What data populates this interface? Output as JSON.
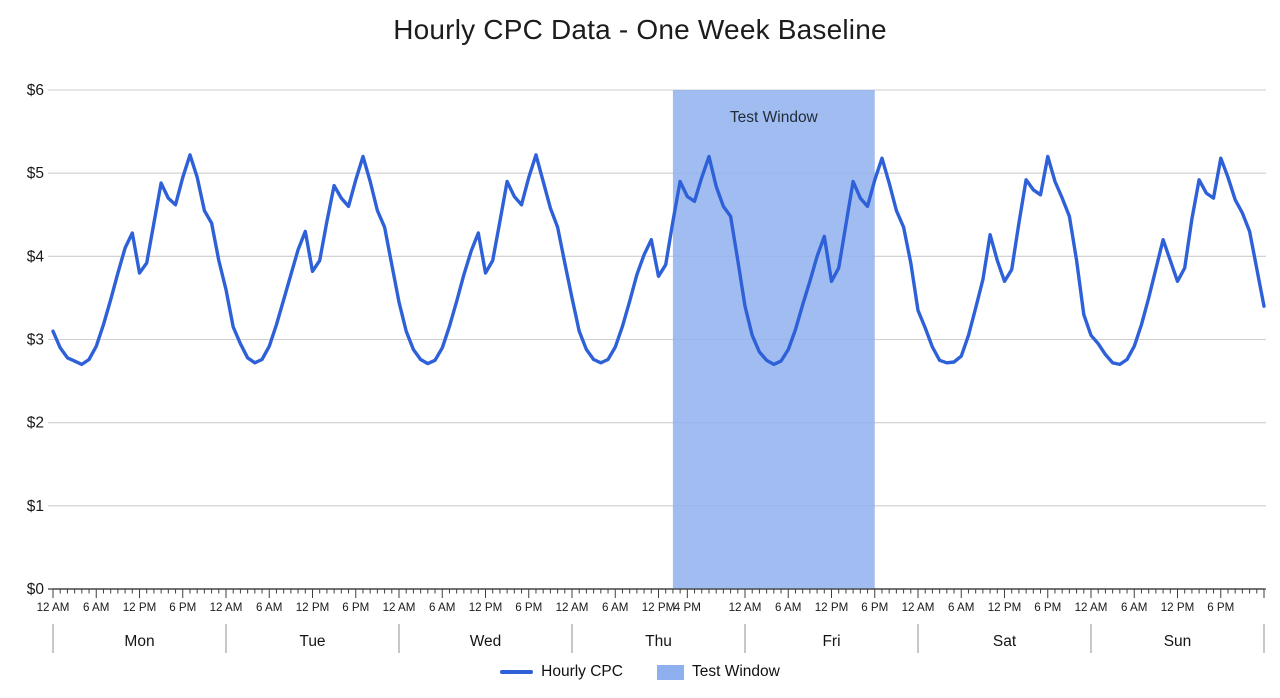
{
  "chart_data": {
    "type": "line",
    "title": "Hourly CPC Data - One Week Baseline",
    "legend_position": "bottom",
    "grid": true,
    "y_axis": {
      "min": 0,
      "max": 6,
      "tick_labels": [
        "$0",
        "$1",
        "$2",
        "$3",
        "$4",
        "$5",
        "$6"
      ]
    },
    "x_axis": {
      "unit": "hour",
      "hours_per_day": 24,
      "total_hours": 168,
      "days": [
        {
          "name": "Mon",
          "tick_labels": [
            [
              "12 AM",
              0
            ],
            [
              "6 AM",
              6
            ],
            [
              "12 PM",
              12
            ],
            [
              "6 PM",
              18
            ]
          ]
        },
        {
          "name": "Tue",
          "tick_labels": [
            [
              "12 AM",
              0
            ],
            [
              "6 AM",
              6
            ],
            [
              "12 PM",
              12
            ],
            [
              "6 PM",
              18
            ]
          ]
        },
        {
          "name": "Wed",
          "tick_labels": [
            [
              "12 AM",
              0
            ],
            [
              "6 AM",
              6
            ],
            [
              "12 PM",
              12
            ],
            [
              "6 PM",
              18
            ]
          ]
        },
        {
          "name": "Thu",
          "tick_labels": [
            [
              "12 AM",
              0
            ],
            [
              "6 AM",
              6
            ],
            [
              "12 PM",
              12
            ],
            [
              "4 PM",
              16
            ]
          ]
        },
        {
          "name": "Fri",
          "tick_labels": [
            [
              "12 AM",
              0
            ],
            [
              "6 AM",
              6
            ],
            [
              "12 PM",
              12
            ],
            [
              "6 PM",
              18
            ]
          ]
        },
        {
          "name": "Sat",
          "tick_labels": [
            [
              "12 AM",
              0
            ],
            [
              "6 AM",
              6
            ],
            [
              "12 PM",
              12
            ],
            [
              "6 PM",
              18
            ]
          ]
        },
        {
          "name": "Sun",
          "tick_labels": [
            [
              "12 AM",
              0
            ],
            [
              "6 AM",
              6
            ],
            [
              "12 PM",
              12
            ],
            [
              "6 PM",
              18
            ]
          ]
        }
      ]
    },
    "series": [
      {
        "name": "Hourly CPC",
        "color": "#2e61d8",
        "start_hour": 0,
        "values": [
          3.1,
          2.9,
          2.78,
          2.74,
          2.7,
          2.76,
          2.92,
          3.18,
          3.48,
          3.8,
          4.1,
          4.28,
          3.8,
          3.92,
          4.4,
          4.88,
          4.7,
          4.62,
          4.95,
          5.22,
          4.95,
          4.55,
          4.4,
          3.95,
          3.6,
          3.15,
          2.95,
          2.78,
          2.72,
          2.76,
          2.92,
          3.18,
          3.48,
          3.78,
          4.08,
          4.3,
          3.82,
          3.95,
          4.42,
          4.85,
          4.7,
          4.6,
          4.92,
          5.2,
          4.9,
          4.55,
          4.35,
          3.9,
          3.45,
          3.1,
          2.88,
          2.76,
          2.71,
          2.75,
          2.9,
          3.16,
          3.46,
          3.78,
          4.06,
          4.28,
          3.8,
          3.95,
          4.42,
          4.9,
          4.72,
          4.62,
          4.95,
          5.22,
          4.9,
          4.58,
          4.35,
          3.92,
          3.5,
          3.1,
          2.88,
          2.76,
          2.72,
          2.76,
          2.91,
          3.16,
          3.46,
          3.78,
          4.02,
          4.2,
          3.76,
          3.9,
          4.42,
          4.9,
          4.72,
          4.66,
          4.95,
          5.2,
          4.84,
          4.6,
          4.48,
          3.95,
          3.4,
          3.05,
          2.85,
          2.75,
          2.7,
          2.74,
          2.88,
          3.12,
          3.42,
          3.7,
          4.0,
          4.24,
          3.7,
          3.86,
          4.38,
          4.9,
          4.7,
          4.6,
          4.92,
          5.18,
          4.88,
          4.55,
          4.35,
          3.92,
          3.35,
          3.14,
          2.91,
          2.75,
          2.72,
          2.73,
          2.8,
          3.05,
          3.38,
          3.72,
          4.26,
          3.95,
          3.7,
          3.84,
          4.4,
          4.92,
          4.8,
          4.74,
          5.2,
          4.9,
          4.7,
          4.48,
          3.95,
          3.3,
          3.05,
          2.95,
          2.82,
          2.72,
          2.7,
          2.76,
          2.92,
          3.18,
          3.5,
          3.85,
          4.2,
          3.95,
          3.7,
          3.86,
          4.45,
          4.92,
          4.76,
          4.7,
          5.18,
          4.95,
          4.68,
          4.52,
          4.3,
          3.85,
          3.4
        ]
      }
    ],
    "annotations": [
      {
        "type": "region",
        "label": "Test Window",
        "start_hour": 86,
        "end_hour": 114,
        "start": "Thu 2 PM",
        "end": "Fri 6 PM",
        "fill": "#8fb0ef"
      }
    ]
  },
  "legend": {
    "items": [
      {
        "label": "Hourly CPC",
        "swatch": "line"
      },
      {
        "label": "Test Window",
        "swatch": "box"
      }
    ]
  },
  "colors": {
    "line": "#2e61d8",
    "window_fill": "#8fb0ef",
    "gridline": "#cecece",
    "axis": "#3f3f3f",
    "day_separator": "#909090",
    "text": "#1a1a1a",
    "window_label_text": "#222b38"
  }
}
